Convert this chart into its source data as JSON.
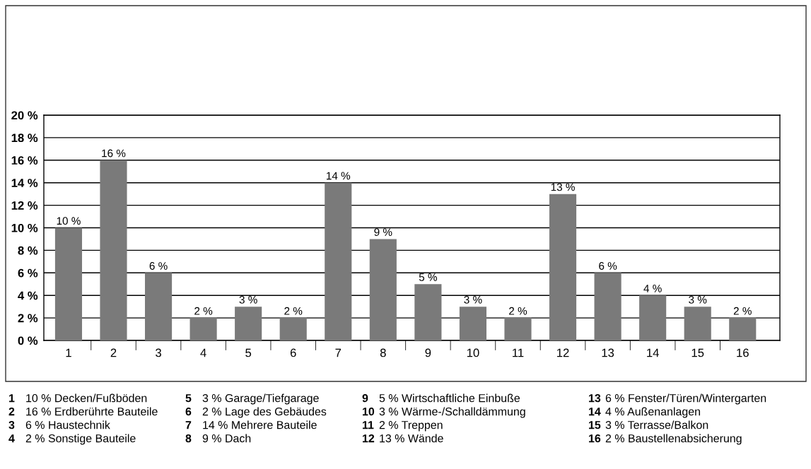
{
  "chart_data": {
    "type": "bar",
    "categories": [
      "1",
      "2",
      "3",
      "4",
      "5",
      "6",
      "7",
      "8",
      "9",
      "10",
      "11",
      "12",
      "13",
      "14",
      "15",
      "16"
    ],
    "values": [
      10,
      16,
      6,
      2,
      3,
      2,
      14,
      9,
      5,
      3,
      2,
      13,
      6,
      4,
      3,
      2
    ],
    "value_labels": [
      "10 %",
      "16 %",
      "6 %",
      "2 %",
      "3 %",
      "2 %",
      "14 %",
      "9 %",
      "5 %",
      "3 %",
      "2 %",
      "13 %",
      "6 %",
      "4 %",
      "3 %",
      "2 %"
    ],
    "color": "#7a7a7a",
    "ylim": [
      0,
      20
    ],
    "yticks": [
      {
        "value": 0,
        "label": "0 %"
      },
      {
        "value": 2,
        "label": "2 %"
      },
      {
        "value": 4,
        "label": "4 %"
      },
      {
        "value": 6,
        "label": "6 %"
      },
      {
        "value": 8,
        "label": "8 %"
      },
      {
        "value": 10,
        "label": "10 %"
      },
      {
        "value": 12,
        "label": "12 %"
      },
      {
        "value": 14,
        "label": "14 %"
      },
      {
        "value": 16,
        "label": "16 %"
      },
      {
        "value": 18,
        "label": "18 %"
      },
      {
        "value": 20,
        "label": "20 %"
      }
    ],
    "grid": "y",
    "annotations": [
      "1 10 % Decken/Fußböden",
      "2 16 % Erdberührte Bauteile",
      "3 6 % Haustechnik",
      "4 2 % Sonstige Bauteile",
      "5 3 % Garage/Tiefgarage",
      "6 2 % Lage des Gebäudes",
      "7 14 % Mehrere Bauteile",
      "8 9 % Dach",
      "9 5 % Wirtschaftliche Einbuße",
      "10 3 % Wärme-/Schalldämmung",
      "11 2 % Treppen",
      "12 13 % Wände",
      "13 6 % Fenster/Türen/Wintergarten",
      "14 4 % Außenanlagen",
      "15 3 % Terrasse/Balkon",
      "16 2 % Baustellenabsicherung"
    ]
  }
}
